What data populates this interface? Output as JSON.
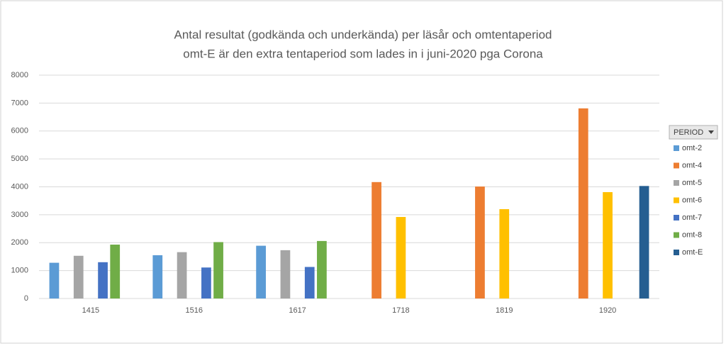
{
  "chart_data": {
    "type": "bar",
    "title": "Antal resultat (godkända och underkända) per läsår och omtentaperiod",
    "subtitle": "omt-E är den extra tentaperiod som lades in i juni-2020 pga Corona",
    "legend_title": "PERIOD",
    "legend": "right",
    "grid": true,
    "categories": [
      "1415",
      "1516",
      "1617",
      "1718",
      "1819",
      "1920"
    ],
    "series": [
      {
        "name": "omt-2",
        "color": "#5b9bd5",
        "values": [
          1280,
          1550,
          1890,
          null,
          null,
          null
        ]
      },
      {
        "name": "omt-4",
        "color": "#ed7d31",
        "values": [
          null,
          null,
          null,
          4170,
          4010,
          6810
        ]
      },
      {
        "name": "omt-5",
        "color": "#a5a5a5",
        "values": [
          1530,
          1660,
          1730,
          null,
          null,
          null
        ]
      },
      {
        "name": "omt-6",
        "color": "#ffc000",
        "values": [
          null,
          null,
          null,
          2920,
          3200,
          3810
        ]
      },
      {
        "name": "omt-7",
        "color": "#4472c4",
        "values": [
          1300,
          1110,
          1130,
          null,
          null,
          null
        ]
      },
      {
        "name": "omt-8",
        "color": "#70ad47",
        "values": [
          1930,
          2020,
          2060,
          null,
          null,
          null
        ]
      },
      {
        "name": "omt-E",
        "color": "#255e91",
        "values": [
          null,
          null,
          null,
          null,
          null,
          4030
        ]
      }
    ],
    "ylim": [
      0,
      8000
    ],
    "yticks": [
      0,
      1000,
      2000,
      3000,
      4000,
      5000,
      6000,
      7000,
      8000
    ]
  }
}
